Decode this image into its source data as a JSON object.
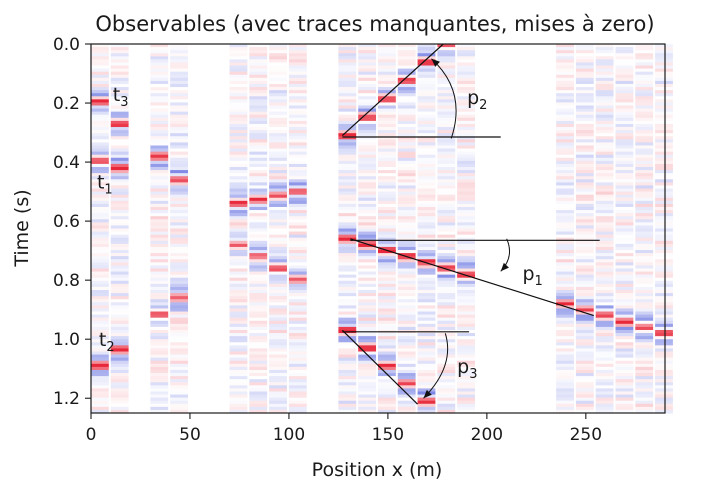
{
  "chart_data": {
    "type": "heatmap",
    "title": "Observables (avec traces manquantes, mises à zero)",
    "xlabel": "Position x (m)",
    "ylabel": "Time (s)",
    "xlim": [
      0,
      290
    ],
    "ylim": [
      1.25,
      0.0
    ],
    "y_inverted": true,
    "xticks": [
      0,
      50,
      100,
      150,
      200,
      250
    ],
    "yticks": [
      "0.0",
      "0.2",
      "0.4",
      "0.6",
      "0.8",
      "1.0",
      "1.2"
    ],
    "colormap": "seismic",
    "colors": {
      "positive": "#e8283a",
      "negative": "#2e3fd6",
      "zero": "#ffffff"
    },
    "trace_spacing_m": 10,
    "trace_width_m": 9,
    "live_trace_groups": [
      {
        "name": "t-events",
        "x": [
          0,
          10
        ]
      },
      {
        "name": "group-2",
        "x": [
          30,
          40
        ]
      },
      {
        "name": "group-3",
        "x": [
          70,
          80,
          90,
          100
        ]
      },
      {
        "name": "p-events",
        "x": [
          125,
          135,
          145,
          155,
          165,
          175,
          185
        ]
      },
      {
        "name": "dipping-tail",
        "x": [
          235,
          245,
          255,
          265,
          275,
          285
        ]
      }
    ],
    "events": [
      {
        "x": [
          0,
          10
        ],
        "t": [
          0.195,
          0.27
        ],
        "amp": 1.0
      },
      {
        "x": [
          0,
          10
        ],
        "t": [
          0.395,
          0.42
        ],
        "amp": 1.0
      },
      {
        "x": [
          0,
          10
        ],
        "t": [
          1.09,
          1.035
        ],
        "amp": 1.0
      },
      {
        "x": [
          30,
          40
        ],
        "t": [
          0.38,
          0.46
        ],
        "amp": 0.9
      },
      {
        "x": [
          30,
          40
        ],
        "t": [
          0.915,
          0.86
        ],
        "amp": 0.9
      },
      {
        "x": [
          70,
          100
        ],
        "t": [
          0.54,
          0.5
        ],
        "amp": 1.0
      },
      {
        "x": [
          70,
          100
        ],
        "t": [
          0.68,
          0.8
        ],
        "amp": 0.8
      },
      {
        "x": [
          125,
          175
        ],
        "t": [
          0.31,
          0.0
        ],
        "amp": 1.0
      },
      {
        "x": [
          125,
          285
        ],
        "t": [
          0.66,
          0.98
        ],
        "amp": 1.0
      },
      {
        "x": [
          125,
          165
        ],
        "t": [
          0.97,
          1.21
        ],
        "amp": 1.0
      }
    ],
    "annotations": [
      {
        "label": "t",
        "sub": "3",
        "x": 11,
        "t": 0.17
      },
      {
        "label": "t",
        "sub": "1",
        "x": 3,
        "t": 0.465
      },
      {
        "label": "t",
        "sub": "2",
        "x": 4,
        "t": 1.0
      },
      {
        "label": "p",
        "sub": "2",
        "x": 190,
        "t": 0.18
      },
      {
        "label": "p",
        "sub": "1",
        "x": 218,
        "t": 0.775
      },
      {
        "label": "p",
        "sub": "3",
        "x": 185,
        "t": 1.09
      }
    ],
    "slope_lines": [
      {
        "name": "p2-slope",
        "x": [
          127,
          178
        ],
        "t": [
          0.31,
          0.0
        ]
      },
      {
        "name": "p2-horizontal",
        "x": [
          127,
          207
        ],
        "t": [
          0.315,
          0.315
        ]
      },
      {
        "name": "p1-slope",
        "x": [
          131,
          254
        ],
        "t": [
          0.66,
          0.92
        ]
      },
      {
        "name": "p1-horizontal",
        "x": [
          131,
          257
        ],
        "t": [
          0.665,
          0.665
        ]
      },
      {
        "name": "p3-slope",
        "x": [
          127,
          165
        ],
        "t": [
          0.97,
          1.22
        ]
      },
      {
        "name": "p3-horizontal",
        "x": [
          127,
          191
        ],
        "t": [
          0.975,
          0.975
        ]
      }
    ],
    "angle_arcs": [
      {
        "name": "p2-angle-arc",
        "from": [
          182,
          0.32
        ],
        "to": [
          172,
          0.05
        ],
        "control": [
          190,
          0.16
        ]
      },
      {
        "name": "p1-angle-arc",
        "from": [
          210,
          0.66
        ],
        "to": [
          207,
          0.77
        ],
        "control": [
          214,
          0.72
        ]
      },
      {
        "name": "p3-angle-arc",
        "from": [
          179,
          0.98
        ],
        "to": [
          168,
          1.2
        ],
        "control": [
          184,
          1.09
        ]
      }
    ]
  }
}
